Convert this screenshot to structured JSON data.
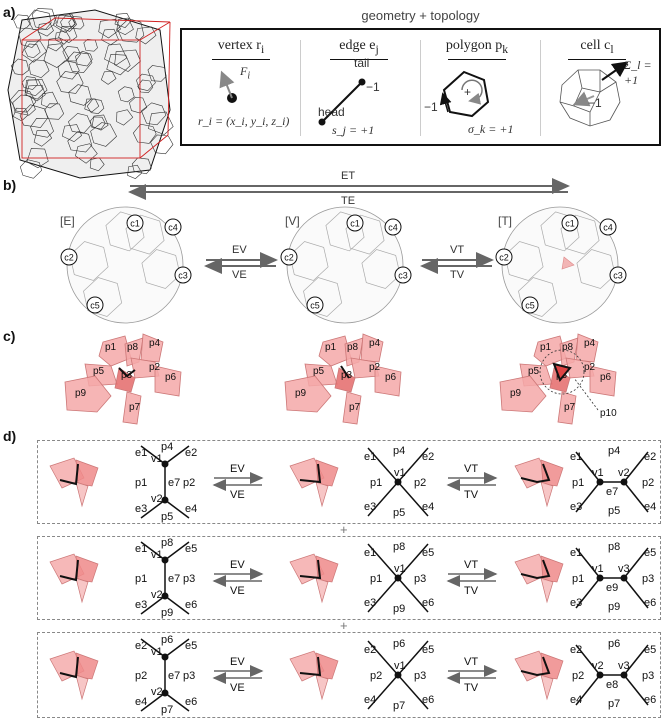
{
  "panels": {
    "a": "a)",
    "b": "b)",
    "c": "c)",
    "d": "d)"
  },
  "geometry": {
    "title": "geometry + topology",
    "vertex": {
      "head": "vertex r",
      "head_sub": "i",
      "force": "F",
      "force_sub": "i",
      "formula": "r_i = (x_i, y_i, z_i)"
    },
    "edge": {
      "head": "edge e",
      "head_sub": "j",
      "tail": "tail",
      "head_label": "head",
      "minus": "−1",
      "formula": "s_j = +1"
    },
    "polygon": {
      "head": "polygon p",
      "head_sub": "k",
      "minus": "−1",
      "plus": "+",
      "formula": "σ_k = +1"
    },
    "cell": {
      "head": "cell c",
      "head_sub": "l",
      "minus": "−1",
      "formula": "Σ_l = +1"
    }
  },
  "transitions": {
    "et": "ET",
    "te": "TE",
    "ev": "EV",
    "ve": "VE",
    "vt": "VT",
    "tv": "TV"
  },
  "stages": [
    "[E]",
    "[V]",
    "[T]"
  ],
  "cell_labels": [
    "c1",
    "c2",
    "c3",
    "c4",
    "c5"
  ],
  "polygon_labels": {
    "E": [
      "p1",
      "p8",
      "p4",
      "p2",
      "p3",
      "p5",
      "p6",
      "p9",
      "p7"
    ],
    "V": [
      "p1",
      "p8",
      "p4",
      "p2",
      "p5",
      "p3",
      "p6",
      "p9",
      "p7"
    ],
    "T": [
      "p1",
      "p8",
      "p4",
      "p2",
      "p5",
      "p3",
      "p6",
      "p9",
      "p7",
      "p10"
    ]
  },
  "rows": [
    {
      "E": {
        "top": "p4",
        "bottom": "p5",
        "left": "p1",
        "right": "p2",
        "v_top": "v1",
        "v_bot": "v2",
        "edge": "e7",
        "tl": "e1",
        "tr": "e2",
        "bl": "e3",
        "br": "e4"
      },
      "V": {
        "top": "p4",
        "bottom": "p5",
        "left": "p1",
        "right": "p2",
        "v": "v1",
        "tl": "e1",
        "tr": "e2",
        "bl": "e3",
        "br": "e4"
      },
      "T": {
        "top": "p4",
        "bottom": "p5",
        "left": "p1",
        "right": "p2",
        "v_left": "v1",
        "v_right": "v2",
        "edge": "e7",
        "tl": "e1",
        "tr": "e2",
        "bl": "e3",
        "br": "e4"
      }
    },
    {
      "E": {
        "top": "p8",
        "bottom": "p9",
        "left": "p1",
        "right": "p3",
        "v_top": "v1",
        "v_bot": "v2",
        "edge": "e7",
        "tl": "e1",
        "tr": "e5",
        "bl": "e3",
        "br": "e6"
      },
      "V": {
        "top": "p8",
        "bottom": "p9",
        "left": "p1",
        "right": "p3",
        "v": "v1",
        "tl": "e1",
        "tr": "e5",
        "bl": "e3",
        "br": "e6"
      },
      "T": {
        "top": "p8",
        "bottom": "p9",
        "left": "p1",
        "right": "p3",
        "v_left": "v1",
        "v_right": "v3",
        "edge": "e9",
        "tl": "e1",
        "tr": "e5",
        "bl": "e3",
        "br": "e6"
      }
    },
    {
      "E": {
        "top": "p6",
        "bottom": "p7",
        "left": "p2",
        "right": "p3",
        "v_top": "v1",
        "v_bot": "v2",
        "edge": "e7",
        "tl": "e2",
        "tr": "e5",
        "bl": "e4",
        "br": "e6"
      },
      "V": {
        "top": "p6",
        "bottom": "p7",
        "left": "p2",
        "right": "p3",
        "v": "v1",
        "tl": "e2",
        "tr": "e5",
        "bl": "e4",
        "br": "e6"
      },
      "T": {
        "top": "p6",
        "bottom": "p7",
        "left": "p2",
        "right": "p3",
        "v_left": "v2",
        "v_right": "v3",
        "edge": "e8",
        "tl": "e2",
        "tr": "e5",
        "bl": "e4",
        "br": "e6"
      }
    }
  ],
  "plus_sign": "+"
}
